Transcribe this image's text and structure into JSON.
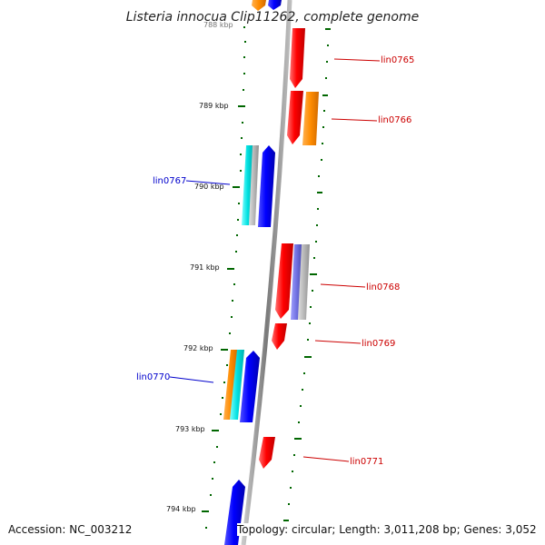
{
  "title": "Listeria innocua Clip11262, complete genome",
  "ticks": {
    "top_partial": "788 kbp",
    "t789": "789 kbp",
    "t790": "790 kbp",
    "t791": "791 kbp",
    "t792": "792 kbp",
    "t793": "793 kbp",
    "t794": "794 kbp"
  },
  "genes": {
    "lin0765": "lin0765",
    "lin0766": "lin0766",
    "lin0767": "lin0767",
    "lin0768": "lin0768",
    "lin0769": "lin0769",
    "lin0770": "lin0770",
    "lin0771": "lin0771"
  },
  "colors": {
    "forward_strand": "#ff0000",
    "reverse_strand": "#0000ff",
    "orange_feature": "#ff8c00",
    "cyan_feature": "#00e5e5",
    "grey_feature": "#b0b0b0",
    "purple_feature": "#7070e0",
    "backbone": "#888888",
    "tick_green": "#006600",
    "label_red": "#cc0000",
    "label_blue": "#0000cc"
  },
  "footer": {
    "accession": "Accession: NC_003212",
    "topology": "Topology: circular; Length: 3,011,208 bp; Genes: 3,052"
  }
}
